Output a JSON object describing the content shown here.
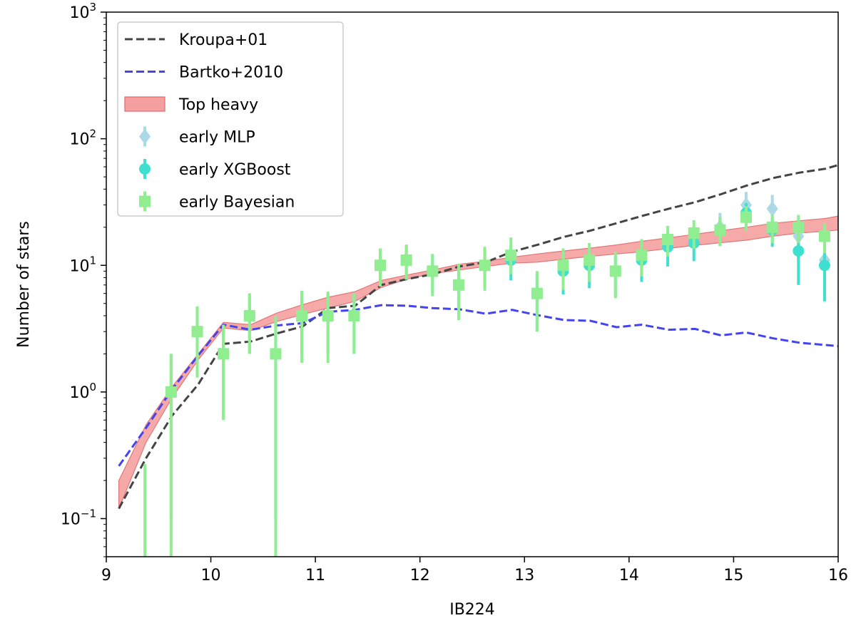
{
  "chart_data": {
    "type": "line",
    "xlabel": "IB224",
    "ylabel": "Number of stars",
    "xlim": [
      9,
      16
    ],
    "ylim": [
      0.05,
      1000
    ],
    "yscale": "log",
    "grid": false,
    "legend_position": "top-left",
    "x_ticks": [
      {
        "value": 9,
        "label": "9"
      },
      {
        "value": 10,
        "label": "10"
      },
      {
        "value": 11,
        "label": "11"
      },
      {
        "value": 12,
        "label": "12"
      },
      {
        "value": 13,
        "label": "13"
      },
      {
        "value": 14,
        "label": "14"
      },
      {
        "value": 15,
        "label": "15"
      },
      {
        "value": 16,
        "label": "16"
      }
    ],
    "y_ticks": [
      {
        "value": 0.1,
        "base": "10",
        "exp": "−1"
      },
      {
        "value": 1,
        "base": "10",
        "exp": "0"
      },
      {
        "value": 10,
        "base": "10",
        "exp": "1"
      },
      {
        "value": 100,
        "base": "10",
        "exp": "2"
      },
      {
        "value": 1000,
        "base": "10",
        "exp": "3"
      }
    ],
    "lines": [
      {
        "name": "Kroupa+01",
        "color": "#444444",
        "dash": true,
        "x": [
          9.12,
          9.38,
          9.63,
          9.88,
          10.12,
          10.38,
          10.63,
          10.88,
          11.12,
          11.38,
          11.63,
          11.88,
          12.12,
          12.38,
          12.63,
          12.88,
          13.12,
          13.38,
          13.63,
          13.88,
          14.12,
          14.38,
          14.63,
          14.88,
          15.12,
          15.38,
          15.63,
          15.88,
          16.0
        ],
        "y": [
          0.12,
          0.3,
          0.65,
          1.15,
          2.4,
          2.5,
          2.9,
          3.3,
          4.6,
          4.8,
          7.0,
          7.8,
          8.5,
          9.8,
          10.6,
          12.8,
          14.5,
          16.8,
          18.8,
          21.5,
          24.5,
          28.0,
          31.5,
          36.5,
          42.5,
          49.0,
          54.0,
          58.0,
          62.0
        ]
      },
      {
        "name": "Bartko+2010",
        "color": "#4444ee",
        "dash": true,
        "x": [
          9.12,
          9.38,
          9.63,
          9.88,
          10.12,
          10.38,
          10.63,
          10.88,
          11.12,
          11.38,
          11.63,
          11.88,
          12.12,
          12.38,
          12.63,
          12.88,
          13.12,
          13.38,
          13.63,
          13.88,
          14.12,
          14.38,
          14.63,
          14.88,
          15.12,
          15.38,
          15.63,
          15.88,
          16.0
        ],
        "y": [
          0.26,
          0.52,
          1.05,
          1.95,
          3.4,
          3.1,
          3.35,
          3.5,
          4.3,
          4.45,
          4.85,
          4.8,
          4.6,
          4.5,
          4.15,
          4.45,
          4.05,
          3.7,
          3.65,
          3.25,
          3.4,
          3.1,
          3.15,
          2.8,
          2.95,
          2.65,
          2.45,
          2.35,
          2.3
        ]
      }
    ],
    "band": {
      "name": "Top heavy",
      "fill": "#f4a0a0",
      "edge": "#e06868",
      "x": [
        9.12,
        9.38,
        9.63,
        9.88,
        10.12,
        10.38,
        10.63,
        10.88,
        11.12,
        11.38,
        11.63,
        11.88,
        12.12,
        12.38,
        12.63,
        12.88,
        13.12,
        13.38,
        13.63,
        13.88,
        14.12,
        14.38,
        14.63,
        14.88,
        15.12,
        15.38,
        15.63,
        15.88,
        16.0
      ],
      "lower": [
        0.12,
        0.4,
        0.9,
        1.8,
        3.2,
        3.05,
        3.6,
        4.1,
        4.6,
        5.2,
        6.7,
        7.8,
        8.6,
        9.2,
        9.8,
        10.4,
        10.6,
        11.2,
        11.8,
        12.3,
        12.8,
        13.6,
        14.4,
        15.1,
        15.8,
        17.0,
        18.0,
        18.6,
        19.0
      ],
      "upper": [
        0.2,
        0.55,
        1.1,
        2.0,
        3.55,
        3.4,
        4.2,
        4.9,
        5.6,
        6.2,
        7.6,
        8.4,
        9.2,
        10.2,
        10.8,
        11.6,
        12.3,
        13.0,
        13.7,
        14.5,
        15.5,
        16.5,
        17.6,
        18.8,
        20.0,
        21.5,
        22.5,
        23.5,
        24.5
      ]
    },
    "series": [
      {
        "name": "early MLP",
        "color": "#add8e6",
        "marker": "diamond",
        "x": [
          9.62,
          9.87,
          10.12,
          10.37,
          10.62,
          10.87,
          11.12,
          11.37,
          11.62,
          11.87,
          12.12,
          12.37,
          12.62,
          12.87,
          13.12,
          13.37,
          13.62,
          13.87,
          14.12,
          14.37,
          14.62,
          14.87,
          15.12,
          15.37,
          15.62,
          15.87
        ],
        "y": [
          1.0,
          3.0,
          2.0,
          4.0,
          2.0,
          4.0,
          4.0,
          4.0,
          10.0,
          11.0,
          9.0,
          7.0,
          10.0,
          12.0,
          6.0,
          10.0,
          11.0,
          9.0,
          12.0,
          15.0,
          17.0,
          20.0,
          30.0,
          28.0,
          17.0,
          11.0
        ],
        "err": [
          [
            0,
            0
          ],
          [
            0,
            0
          ],
          [
            0,
            0
          ],
          [
            0,
            0
          ],
          [
            0,
            0
          ],
          [
            0,
            0
          ],
          [
            0,
            0
          ],
          [
            0,
            0
          ],
          [
            0,
            0
          ],
          [
            0,
            0
          ],
          [
            0,
            0
          ],
          [
            0,
            0
          ],
          [
            0,
            0
          ],
          [
            0,
            0
          ],
          [
            0,
            0
          ],
          [
            0,
            0
          ],
          [
            0,
            0
          ],
          [
            0,
            0
          ],
          [
            0,
            0
          ],
          [
            0,
            0
          ],
          [
            0,
            0
          ],
          [
            5,
            6
          ],
          [
            7,
            8
          ],
          [
            8,
            8
          ],
          [
            6,
            6
          ],
          [
            4,
            4
          ]
        ]
      },
      {
        "name": "early XGBoost",
        "color": "#40e0d0",
        "marker": "circle",
        "x": [
          9.62,
          9.87,
          10.12,
          10.37,
          10.62,
          10.87,
          11.12,
          11.37,
          11.62,
          11.87,
          12.12,
          12.37,
          12.62,
          12.87,
          13.12,
          13.37,
          13.62,
          13.87,
          14.12,
          14.37,
          14.62,
          14.87,
          15.12,
          15.37,
          15.62,
          15.87
        ],
        "y": [
          1.0,
          3.0,
          2.0,
          4.0,
          2.0,
          4.0,
          4.0,
          4.0,
          10.0,
          11.0,
          9.0,
          7.0,
          10.0,
          11.0,
          6.0,
          9.0,
          10.0,
          9.0,
          11.0,
          14.0,
          15.0,
          19.0,
          26.0,
          19.0,
          13.0,
          10.0
        ],
        "err": [
          [
            0.9,
            1.0
          ],
          [
            1.7,
            1.7
          ],
          [
            1.4,
            1.4
          ],
          [
            2.0,
            2.0
          ],
          [
            1.9,
            2.0
          ],
          [
            2.0,
            2.0
          ],
          [
            2.0,
            2.0
          ],
          [
            2.0,
            2.0
          ],
          [
            3.2,
            3.2
          ],
          [
            3.3,
            3.3
          ],
          [
            3.0,
            3.0
          ],
          [
            2.6,
            2.6
          ],
          [
            3.2,
            3.2
          ],
          [
            3.4,
            3.4
          ],
          [
            3.0,
            2.5
          ],
          [
            3.1,
            3.1
          ],
          [
            3.4,
            3.3
          ],
          [
            3.3,
            3.0
          ],
          [
            3.6,
            3.3
          ],
          [
            4.2,
            3.8
          ],
          [
            4.2,
            3.9
          ],
          [
            4.7,
            4.4
          ],
          [
            5.4,
            5.1
          ],
          [
            5.0,
            4.4
          ],
          [
            6.0,
            4.0
          ],
          [
            4.8,
            4.0
          ]
        ]
      },
      {
        "name": "early Bayesian",
        "color": "#90ee90",
        "marker": "square",
        "x": [
          9.37,
          9.62,
          9.87,
          10.12,
          10.37,
          10.62,
          10.87,
          11.12,
          11.37,
          11.62,
          11.87,
          12.12,
          12.37,
          12.62,
          12.87,
          13.12,
          13.37,
          13.62,
          13.87,
          14.12,
          14.37,
          14.62,
          14.87,
          15.12,
          15.37,
          15.62,
          15.87
        ],
        "y": [
          0.0,
          1.0,
          3.0,
          2.0,
          4.0,
          2.0,
          4.0,
          4.0,
          4.0,
          10.0,
          11.0,
          9.0,
          7.0,
          10.0,
          12.0,
          6.0,
          10.0,
          11.0,
          9.0,
          12.0,
          16.0,
          18.0,
          19.0,
          24.0,
          20.0,
          20.0,
          17.0
        ],
        "err": [
          [
            0,
            0.27
          ],
          [
            0.999,
            1.0
          ],
          [
            1.7,
            1.75
          ],
          [
            1.4,
            1.4
          ],
          [
            2.0,
            2.0
          ],
          [
            1.999,
            2.0
          ],
          [
            2.3,
            2.3
          ],
          [
            2.3,
            2.2
          ],
          [
            2.0,
            2.0
          ],
          [
            3.2,
            3.6
          ],
          [
            3.3,
            3.6
          ],
          [
            3.3,
            3.3
          ],
          [
            3.3,
            3.3
          ],
          [
            3.7,
            4.0
          ],
          [
            3.5,
            4.6
          ],
          [
            3.0,
            3.0
          ],
          [
            3.6,
            3.6
          ],
          [
            3.6,
            4.0
          ],
          [
            3.5,
            3.8
          ],
          [
            3.8,
            4.1
          ],
          [
            4.3,
            4.5
          ],
          [
            4.5,
            4.7
          ],
          [
            4.8,
            5.0
          ],
          [
            5.1,
            5.3
          ],
          [
            5.0,
            5.2
          ],
          [
            5.0,
            5.0
          ],
          [
            4.5,
            4.5
          ]
        ]
      }
    ],
    "legend": [
      {
        "label": "Kroupa+01",
        "kind": "line",
        "color": "#444444"
      },
      {
        "label": "Bartko+2010",
        "kind": "line",
        "color": "#4444ee"
      },
      {
        "label": "Top heavy",
        "kind": "patch",
        "color": "#f4a0a0",
        "edge": "#e06868"
      },
      {
        "label": "early MLP",
        "kind": "diamond",
        "color": "#add8e6"
      },
      {
        "label": "early XGBoost",
        "kind": "circle",
        "color": "#40e0d0"
      },
      {
        "label": "early Bayesian",
        "kind": "square",
        "color": "#90ee90"
      }
    ]
  }
}
